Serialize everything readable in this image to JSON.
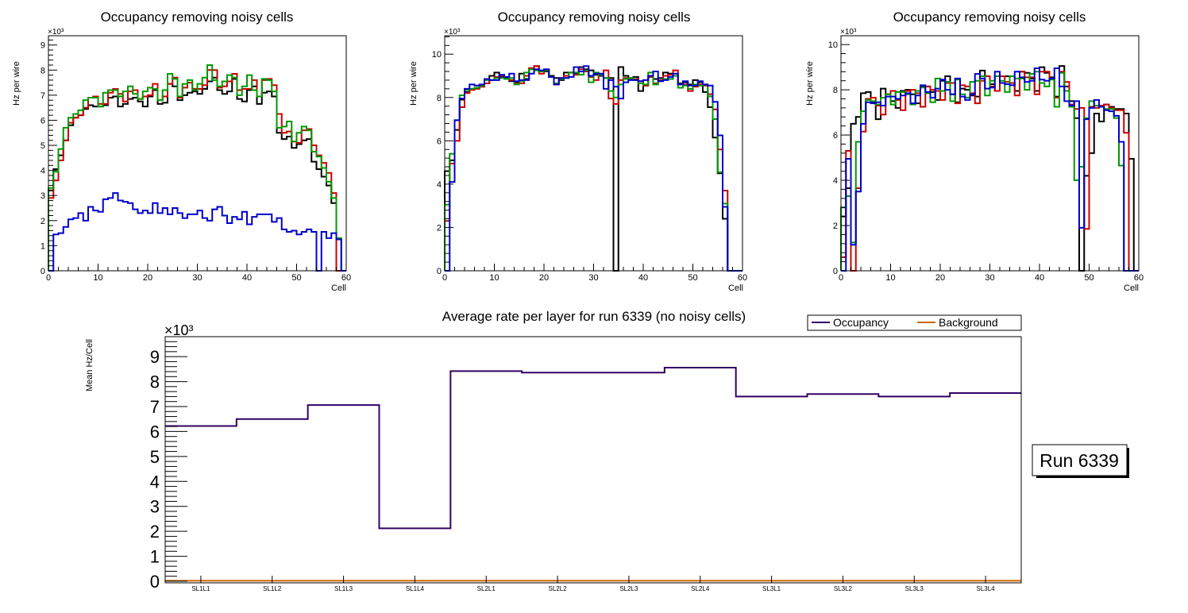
{
  "chart_data": [
    {
      "type": "line",
      "style": "step-histogram",
      "title": "Occupancy removing noisy cells",
      "xlabel": "Cell",
      "ylabel": "Hz per wire",
      "y_multiplier_label": "×10³",
      "xlim": [
        0,
        60
      ],
      "ylim": [
        0,
        9.37
      ],
      "x_ticks": [
        0,
        10,
        20,
        30,
        40,
        50,
        60
      ],
      "y_ticks": [
        0,
        1,
        2,
        3,
        4,
        5,
        6,
        7,
        8,
        9
      ],
      "bin_width": 1,
      "series": [
        {
          "name": "black",
          "color": "#000000",
          "values": [
            3.2,
            4.05,
            4.6,
            5.2,
            5.8,
            6.1,
            6.2,
            6.45,
            6.6,
            6.55,
            6.55,
            6.6,
            6.9,
            6.95,
            6.55,
            6.65,
            6.85,
            6.9,
            6.75,
            6.55,
            6.95,
            7.2,
            6.65,
            6.7,
            7.45,
            7.35,
            6.8,
            7.0,
            7.1,
            7.15,
            7.05,
            7.25,
            7.55,
            7.7,
            7.2,
            7.05,
            7.15,
            7.65,
            6.85,
            6.75,
            7.2,
            7.35,
            6.65,
            7.1,
            7.15,
            6.95,
            5.5,
            5.25,
            5.35,
            4.9,
            5.05,
            5.2,
            5.25,
            4.35,
            4.05,
            3.75,
            3.4,
            2.7,
            0.0,
            0.0
          ]
        },
        {
          "name": "red",
          "color": "#cc0000",
          "values": [
            2.9,
            3.6,
            4.4,
            5.2,
            5.9,
            6.1,
            6.2,
            6.5,
            6.9,
            6.95,
            6.65,
            6.65,
            7.1,
            7.25,
            7.05,
            6.75,
            7.15,
            7.2,
            6.85,
            6.95,
            7.0,
            7.45,
            6.8,
            6.95,
            7.45,
            7.7,
            6.9,
            7.3,
            7.5,
            7.25,
            7.25,
            7.4,
            8.0,
            8.0,
            7.3,
            7.35,
            7.55,
            7.85,
            7.2,
            7.25,
            7.25,
            7.6,
            6.95,
            7.6,
            7.65,
            7.4,
            6.25,
            5.5,
            5.55,
            5.15,
            5.1,
            5.6,
            5.65,
            5.0,
            4.6,
            4.3,
            3.9,
            3.1,
            0.0,
            0.0
          ]
        },
        {
          "name": "green",
          "color": "#009900",
          "values": [
            3.3,
            3.95,
            4.85,
            5.7,
            6.1,
            6.25,
            6.4,
            6.8,
            6.9,
            6.9,
            6.55,
            7.1,
            7.2,
            7.2,
            6.95,
            7.15,
            7.35,
            7.05,
            6.85,
            7.15,
            7.3,
            7.25,
            6.8,
            7.2,
            7.85,
            7.65,
            6.95,
            7.45,
            7.6,
            7.2,
            7.45,
            7.7,
            8.2,
            7.6,
            7.35,
            7.55,
            7.8,
            7.7,
            7.0,
            7.35,
            7.8,
            7.2,
            6.95,
            7.65,
            7.6,
            7.15,
            5.7,
            5.75,
            5.95,
            5.15,
            5.5,
            5.75,
            5.6,
            4.75,
            4.55,
            4.1,
            3.55,
            2.9,
            1.3,
            0.0
          ]
        },
        {
          "name": "blue",
          "color": "#0000cc",
          "values": [
            0.0,
            1.45,
            1.5,
            1.75,
            2.05,
            2.1,
            2.3,
            2.0,
            2.55,
            2.4,
            2.35,
            2.85,
            2.9,
            3.1,
            2.8,
            2.75,
            2.7,
            2.45,
            2.3,
            2.4,
            2.3,
            2.7,
            2.3,
            2.5,
            2.25,
            2.5,
            2.3,
            2.1,
            2.25,
            2.25,
            2.4,
            2.1,
            2.0,
            2.45,
            2.55,
            2.2,
            1.9,
            2.15,
            2.05,
            2.35,
            1.85,
            2.15,
            2.25,
            2.25,
            2.25,
            1.95,
            2.1,
            1.65,
            1.55,
            1.6,
            1.45,
            1.55,
            1.65,
            1.55,
            0.0,
            1.55,
            1.3,
            1.5,
            1.25,
            0.0
          ]
        }
      ]
    },
    {
      "type": "line",
      "style": "step-histogram",
      "title": "Occupancy removing noisy cells",
      "xlabel": "Cell",
      "ylabel": "Hz per wire",
      "y_multiplier_label": "×10³",
      "xlim": [
        0,
        60
      ],
      "ylim": [
        0,
        10.85
      ],
      "x_ticks": [
        0,
        10,
        20,
        30,
        40,
        50,
        60
      ],
      "y_ticks": [
        0,
        2,
        4,
        6,
        8,
        10
      ],
      "bin_width": 1,
      "series": [
        {
          "name": "black",
          "color": "#000000",
          "values": [
            4.6,
            5.1,
            6.5,
            7.9,
            8.25,
            8.4,
            8.45,
            8.5,
            8.65,
            9.0,
            9.15,
            8.95,
            8.9,
            8.75,
            8.7,
            9.1,
            8.85,
            9.35,
            9.45,
            9.2,
            9.2,
            9.0,
            8.9,
            8.8,
            9.15,
            9.15,
            9.1,
            9.4,
            9.3,
            9.25,
            9.05,
            9.0,
            8.9,
            8.9,
            0.0,
            9.4,
            9.0,
            8.9,
            8.95,
            8.3,
            8.55,
            8.95,
            8.85,
            8.9,
            9.15,
            9.1,
            9.0,
            8.65,
            8.7,
            8.6,
            8.8,
            8.7,
            8.25,
            7.55,
            6.15,
            4.5,
            2.4,
            0.0,
            0.0,
            0.0
          ]
        },
        {
          "name": "red",
          "color": "#cc0000",
          "values": [
            2.3,
            4.95,
            6.0,
            7.55,
            8.2,
            8.35,
            8.4,
            8.5,
            8.65,
            8.8,
            8.95,
            9.0,
            8.85,
            8.8,
            8.65,
            8.65,
            9.0,
            9.35,
            9.45,
            9.1,
            9.25,
            8.95,
            8.6,
            8.9,
            9.0,
            9.15,
            9.05,
            9.3,
            9.2,
            8.95,
            8.8,
            9.05,
            9.25,
            7.95,
            7.7,
            8.8,
            8.9,
            8.85,
            8.85,
            8.75,
            8.55,
            8.95,
            8.65,
            8.8,
            9.0,
            9.05,
            9.25,
            8.6,
            8.6,
            8.3,
            8.5,
            8.6,
            8.55,
            8.15,
            7.45,
            5.6,
            3.7,
            0.0,
            0.0,
            0.0
          ]
        },
        {
          "name": "green",
          "color": "#009900",
          "values": [
            3.05,
            5.4,
            6.95,
            8.1,
            8.35,
            8.4,
            8.45,
            8.55,
            8.8,
            8.8,
            8.9,
            8.9,
            8.85,
            8.9,
            8.6,
            8.75,
            9.15,
            9.3,
            9.25,
            9.2,
            9.25,
            8.95,
            8.65,
            8.85,
            8.9,
            9.15,
            9.15,
            9.05,
            9.25,
            8.7,
            9.15,
            9.05,
            8.9,
            8.3,
            8.0,
            8.6,
            8.85,
            8.9,
            8.8,
            8.65,
            8.6,
            9.15,
            8.6,
            8.75,
            8.85,
            8.85,
            9.0,
            8.45,
            8.55,
            8.4,
            8.6,
            8.55,
            8.6,
            8.05,
            7.0,
            4.55,
            3.1,
            0.0,
            0.0,
            0.0
          ]
        },
        {
          "name": "blue",
          "color": "#0000cc",
          "values": [
            0.0,
            4.1,
            6.95,
            7.95,
            8.4,
            8.6,
            8.55,
            8.6,
            8.85,
            8.8,
            8.8,
            9.05,
            8.95,
            9.1,
            8.75,
            8.8,
            8.8,
            9.1,
            9.3,
            9.25,
            9.3,
            8.95,
            8.6,
            8.9,
            8.9,
            8.95,
            9.4,
            9.2,
            9.45,
            9.0,
            9.1,
            9.1,
            8.4,
            8.8,
            8.5,
            7.95,
            8.7,
            8.8,
            8.8,
            8.75,
            8.8,
            9.0,
            9.2,
            8.75,
            8.8,
            8.95,
            9.1,
            8.6,
            8.75,
            8.55,
            8.55,
            8.75,
            8.6,
            8.55,
            7.8,
            6.25,
            2.95,
            0.0,
            0.0,
            0.0
          ]
        }
      ]
    },
    {
      "type": "line",
      "style": "step-histogram",
      "title": "Occupancy removing noisy cells",
      "xlabel": "Cell",
      "ylabel": "Hz per wire",
      "y_multiplier_label": "×10³",
      "xlim": [
        0,
        60
      ],
      "ylim": [
        0,
        10.39
      ],
      "x_ticks": [
        0,
        10,
        20,
        30,
        40,
        50,
        60
      ],
      "y_ticks": [
        0,
        2,
        4,
        6,
        8,
        10
      ],
      "bin_width": 1,
      "series": [
        {
          "name": "black",
          "color": "#000000",
          "values": [
            2.4,
            3.65,
            6.5,
            6.8,
            7.85,
            7.9,
            7.45,
            6.7,
            8.05,
            7.8,
            7.5,
            7.2,
            7.95,
            8.0,
            7.8,
            7.4,
            8.15,
            8.15,
            7.9,
            7.55,
            8.4,
            8.6,
            7.8,
            7.45,
            8.05,
            8.0,
            7.75,
            7.7,
            8.85,
            8.6,
            8.25,
            7.95,
            8.6,
            8.6,
            8.3,
            7.95,
            8.8,
            8.75,
            8.5,
            7.95,
            9.0,
            8.75,
            8.55,
            7.7,
            9.05,
            8.15,
            7.5,
            6.75,
            0.0,
            4.2,
            5.2,
            6.95,
            6.6,
            7.35,
            7.25,
            7.15,
            7.15,
            6.95,
            4.95,
            0.0
          ]
        },
        {
          "name": "red",
          "color": "#cc0000",
          "values": [
            0.6,
            5.3,
            0.0,
            3.65,
            6.15,
            7.6,
            7.65,
            7.3,
            6.9,
            7.8,
            7.95,
            7.55,
            7.1,
            7.95,
            8.0,
            7.85,
            7.25,
            8.15,
            8.0,
            7.95,
            7.55,
            8.3,
            8.3,
            7.4,
            8.2,
            8.15,
            7.85,
            7.4,
            8.4,
            8.6,
            8.15,
            7.95,
            8.6,
            8.35,
            8.3,
            7.75,
            8.8,
            8.55,
            8.55,
            7.8,
            8.8,
            8.8,
            8.5,
            7.65,
            8.8,
            8.35,
            7.35,
            7.15,
            7.2,
            1.85,
            7.25,
            7.2,
            7.3,
            7.35,
            7.2,
            7.1,
            7.1,
            6.1,
            0.0,
            0.0
          ]
        },
        {
          "name": "green",
          "color": "#009900",
          "values": [
            2.8,
            3.3,
            1.25,
            5.7,
            7.05,
            7.55,
            7.5,
            7.35,
            7.65,
            7.8,
            7.35,
            7.9,
            7.9,
            7.8,
            7.35,
            7.95,
            8.1,
            7.85,
            7.45,
            8.5,
            7.95,
            8.35,
            7.5,
            8.45,
            7.8,
            7.65,
            8.35,
            8.4,
            8.6,
            7.75,
            8.4,
            8.6,
            8.4,
            7.9,
            8.6,
            8.5,
            8.5,
            8.0,
            8.7,
            8.8,
            8.3,
            8.15,
            8.45,
            7.25,
            8.75,
            7.95,
            7.25,
            4.0,
            4.6,
            6.75,
            7.5,
            7.3,
            7.25,
            7.15,
            7.15,
            6.75,
            4.65,
            0.0,
            0.0,
            0.0
          ]
        },
        {
          "name": "blue",
          "color": "#0000cc",
          "values": [
            0.0,
            4.95,
            1.15,
            3.5,
            6.5,
            7.45,
            7.4,
            7.45,
            7.3,
            7.7,
            7.7,
            7.6,
            7.75,
            7.85,
            7.4,
            7.75,
            8.2,
            7.9,
            7.65,
            8.05,
            8.45,
            8.0,
            7.8,
            8.5,
            7.7,
            7.55,
            7.8,
            8.7,
            8.5,
            8.05,
            8.1,
            8.8,
            8.3,
            8.25,
            8.2,
            8.8,
            8.55,
            8.35,
            8.4,
            8.95,
            8.45,
            8.4,
            8.5,
            8.95,
            8.15,
            7.5,
            7.3,
            7.5,
            1.9,
            6.7,
            7.2,
            7.55,
            7.25,
            7.1,
            7.05,
            6.85,
            5.7,
            0.0,
            0.0,
            0.0
          ]
        }
      ]
    },
    {
      "type": "line",
      "style": "step-histogram",
      "title": "Average rate per layer for run 6339 (no noisy cells)",
      "xlabel": "",
      "ylabel": "Mean Hz/Cell",
      "y_multiplier_label": "×10³",
      "ylim": [
        0,
        9.8
      ],
      "y_ticks": [
        0,
        1,
        2,
        3,
        4,
        5,
        6,
        7,
        8,
        9
      ],
      "categories": [
        "SL1L1",
        "SL1L2",
        "SL1L3",
        "SL1L4",
        "SL2L1",
        "SL2L2",
        "SL2L3",
        "SL2L4",
        "SL3L1",
        "SL3L2",
        "SL3L3",
        "SL3L4"
      ],
      "legend": {
        "placement": "top-right",
        "entries": [
          "Occupancy",
          "Background"
        ]
      },
      "series": [
        {
          "name": "Occupancy",
          "color": "#330066",
          "values": [
            6.22,
            6.5,
            7.06,
            2.12,
            8.42,
            8.36,
            8.36,
            8.56,
            7.4,
            7.5,
            7.4,
            7.54
          ]
        },
        {
          "name": "Background",
          "color": "#cc6600",
          "values": [
            0.02,
            0.02,
            0.02,
            0.02,
            0.02,
            0.02,
            0.02,
            0.02,
            0.02,
            0.02,
            0.02,
            0.02
          ]
        }
      ]
    }
  ],
  "annotation": {
    "run_label": "Run 6339"
  }
}
